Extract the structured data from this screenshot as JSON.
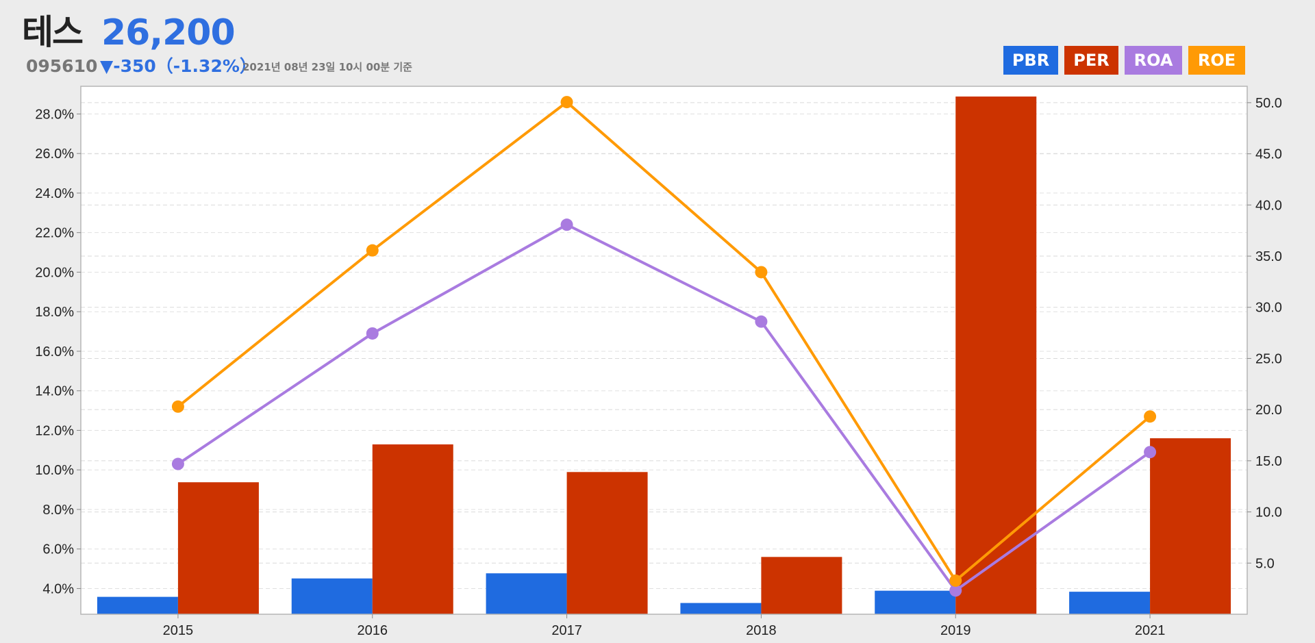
{
  "header": {
    "stock_name": "테스",
    "price": "26,200",
    "code": "095610",
    "change": "▼-350（-1.32%）",
    "as_of": "2021년 08년 23일 10시 00분 기준"
  },
  "legend": [
    {
      "label": "PBR",
      "color": "#1f6be0"
    },
    {
      "label": "PER",
      "color": "#cc3300"
    },
    {
      "label": "ROA",
      "color": "#a97be0"
    },
    {
      "label": "ROE",
      "color": "#ff9a05"
    }
  ],
  "chart_data": {
    "type": "bar",
    "categories": [
      "2015",
      "2016",
      "2017",
      "2018",
      "2019",
      "2021"
    ],
    "left_axis": {
      "ylim": [
        2.7,
        29.4
      ],
      "ticks": [
        "4.0%",
        "6.0%",
        "8.0%",
        "10.0%",
        "12.0%",
        "14.0%",
        "16.0%",
        "18.0%",
        "20.0%",
        "22.0%",
        "24.0%",
        "26.0%",
        "28.0%"
      ],
      "tick_values": [
        4,
        6,
        8,
        10,
        12,
        14,
        16,
        18,
        20,
        22,
        24,
        26,
        28
      ]
    },
    "right_axis": {
      "ylim": [
        0,
        51.6
      ],
      "ticks": [
        "5.0",
        "10.0",
        "15.0",
        "20.0",
        "25.0",
        "30.0",
        "35.0",
        "40.0",
        "45.0",
        "50.0"
      ],
      "tick_values": [
        5,
        10,
        15,
        20,
        25,
        30,
        35,
        40,
        45,
        50
      ]
    },
    "series": [
      {
        "name": "PBR",
        "kind": "bar",
        "axis": "right",
        "color": "#1f6be0",
        "values": [
          1.7,
          3.5,
          4.0,
          1.1,
          2.3,
          2.2
        ]
      },
      {
        "name": "PER",
        "kind": "bar",
        "axis": "right",
        "color": "#cc3300",
        "values": [
          12.9,
          16.6,
          13.9,
          5.6,
          50.6,
          17.2
        ]
      },
      {
        "name": "ROA",
        "kind": "line",
        "axis": "left",
        "color": "#a97be0",
        "values": [
          10.3,
          16.9,
          22.4,
          17.5,
          3.9,
          10.9
        ]
      },
      {
        "name": "ROE",
        "kind": "line",
        "axis": "left",
        "color": "#ff9a05",
        "values": [
          13.2,
          21.1,
          28.6,
          20.0,
          4.4,
          12.7
        ]
      }
    ]
  }
}
